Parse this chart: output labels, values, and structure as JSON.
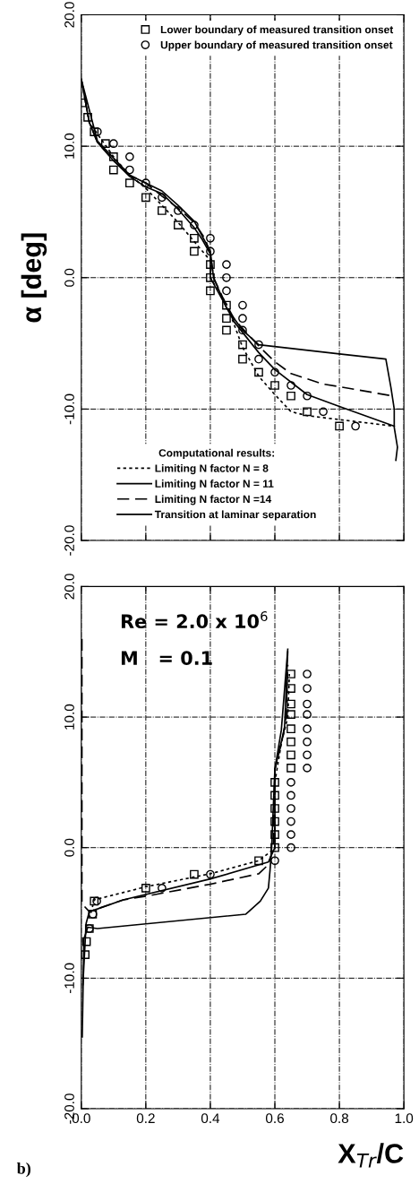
{
  "chart_data": [
    {
      "type": "line",
      "ylabel": "α [deg]",
      "legend": "top right",
      "legend_title": "Computational results:",
      "grid": true,
      "tick_labels": "y",
      "xlim": [
        0,
        1
      ],
      "xticks": [
        0,
        0.2,
        0.4,
        0.6,
        0.8,
        1
      ],
      "ylim": [
        -20,
        20
      ],
      "yticks": [
        {
          "value": -20,
          "label": "-20.0"
        },
        {
          "value": -10,
          "label": "-10.0"
        },
        {
          "value": 0,
          "label": "0.0"
        },
        {
          "value": 10,
          "label": "10.0"
        },
        {
          "value": 20,
          "label": "20.0"
        }
      ],
      "series": [
        {
          "type": "scatter",
          "name": "Lower boundary of measured transition onset",
          "color": "#000000",
          "marker": "square",
          "x": [
            0.003,
            0.02,
            0.04,
            0.075,
            0.1,
            0.1,
            0.15,
            0.2,
            0.25,
            0.3,
            0.35,
            0.35,
            0.4,
            0.4,
            0.4,
            0.45,
            0.45,
            0.45,
            0.5,
            0.5,
            0.55,
            0.6,
            0.65,
            0.7,
            0.8
          ],
          "values": [
            13.3,
            12.2,
            11.1,
            10.2,
            9.2,
            8.2,
            7.2,
            6.1,
            5.1,
            4.0,
            3.0,
            2.0,
            1.0,
            0,
            -1.0,
            -2.1,
            -3.1,
            -4.0,
            -5.1,
            -6.2,
            -7.2,
            -8.2,
            -9.0,
            -10.2,
            -11.3
          ]
        },
        {
          "type": "scatter",
          "name": "Upper boundary of measured transition onset",
          "color": "#000000",
          "marker": "circle",
          "x": [
            0.05,
            0.1,
            0.15,
            0.15,
            0.2,
            0.25,
            0.3,
            0.35,
            0.4,
            0.4,
            0.45,
            0.45,
            0.45,
            0.5,
            0.5,
            0.5,
            0.55,
            0.55,
            0.6,
            0.65,
            0.7,
            0.75,
            0.85
          ],
          "values": [
            11.1,
            10.2,
            9.2,
            8.2,
            7.2,
            6.1,
            5.1,
            4.0,
            3.0,
            2.0,
            1.0,
            0,
            -1.0,
            -2.1,
            -3.1,
            -4.0,
            -5.1,
            -6.2,
            -7.2,
            -8.2,
            -9.0,
            -10.2,
            -11.3
          ]
        },
        {
          "name": "Limiting N factor N = 8",
          "color": "#000000",
          "line_style": "dotted",
          "x": [
            0,
            0.025,
            0.1,
            0.15,
            0.2,
            0.3,
            0.4,
            0.4,
            0.45,
            0.5,
            0.55,
            0.6,
            0.65,
            0.7,
            0.8,
            0.97
          ],
          "values": [
            15.1,
            11.8,
            9.2,
            7.8,
            6.8,
            4.2,
            1.3,
            0,
            -2.0,
            -5.3,
            -7.5,
            -8.9,
            -10.2,
            -10.5,
            -10.8,
            -11.3
          ]
        },
        {
          "name": "Limiting N factor N = 11",
          "color": "#000000",
          "line_style": "solid",
          "x": [
            0,
            0.025,
            0.05,
            0.1,
            0.15,
            0.2,
            0.25,
            0.3,
            0.35,
            0.375,
            0.4,
            0.4,
            0.44,
            0.475,
            0.55,
            0.6,
            0.7,
            0.8,
            0.97
          ],
          "values": [
            15.1,
            11.8,
            10.3,
            8.9,
            7.7,
            6.9,
            6.4,
            5.2,
            3.8,
            2.9,
            1.8,
            0,
            -1.8,
            -3.4,
            -5.7,
            -7.0,
            -8.9,
            -9.8,
            -11.3
          ]
        },
        {
          "name": "Limiting N factor N =14",
          "color": "#000000",
          "line_style": "dashed",
          "x": [
            0,
            0.025,
            0.05,
            0.1,
            0.15,
            0.2,
            0.25,
            0.3,
            0.35,
            0.385,
            0.4,
            0.41,
            0.44,
            0.475,
            0.55,
            0.6,
            0.65,
            0.75,
            0.8,
            0.965
          ],
          "values": [
            15.1,
            11.8,
            10.3,
            8.9,
            7.8,
            7.2,
            6.2,
            5.3,
            4.2,
            2.9,
            1.8,
            0,
            -1.6,
            -3.2,
            -5.2,
            -6.4,
            -7.3,
            -8.1,
            -8.3,
            -9.0
          ]
        },
        {
          "name": "Transition at laminar separation",
          "color": "#000000",
          "line_style": "solid",
          "x": [
            0,
            0.05,
            0.15,
            0.2,
            0.25,
            0.3,
            0.35,
            0.4,
            0.41,
            0.45,
            0.5,
            0.55,
            0.8,
            0.944,
            0.96,
            0.97,
            0.97,
            0.98,
            0.975
          ],
          "values": [
            15.1,
            10.4,
            7.8,
            7.2,
            6.6,
            5.5,
            4.3,
            2.0,
            0,
            -2.3,
            -4.0,
            -5.1,
            -5.8,
            -6.2,
            -8.4,
            -10.0,
            -11.4,
            -12.9,
            -13.9
          ]
        }
      ]
    },
    {
      "type": "line",
      "xlabel": "X$_{Tr}$/C",
      "grid": true,
      "annotations": [
        "Re = 2.0 x 10$^{6}$",
        "M   = 0.1",
        "b)"
      ],
      "xlim": [
        0,
        1
      ],
      "xticks": [
        {
          "value": 0,
          "label": "0.0"
        },
        {
          "value": 0.2,
          "label": "0.2"
        },
        {
          "value": 0.4,
          "label": "0.4"
        },
        {
          "value": 0.6,
          "label": "0.6"
        },
        {
          "value": 0.8,
          "label": "0.8"
        },
        {
          "value": 1,
          "label": "1.0"
        }
      ],
      "ylim": [
        -20,
        20
      ],
      "yticks": [
        {
          "value": -20,
          "label": "-20.0"
        },
        {
          "value": -10,
          "label": "-10.0"
        },
        {
          "value": 0,
          "label": "0.0"
        },
        {
          "value": 10,
          "label": "10.0"
        },
        {
          "value": 20,
          "label": "20.0"
        }
      ],
      "series": [
        {
          "type": "scatter",
          "color": "#000000",
          "marker": "square",
          "x": [
            0.012,
            0.016,
            0.025,
            0.035,
            0.04,
            0.2,
            0.35,
            0.55,
            0.6,
            0.6,
            0.6,
            0.6,
            0.6,
            0.6,
            0.65,
            0.65,
            0.65,
            0.65,
            0.65,
            0.65,
            0.65,
            0.65
          ],
          "values": [
            -8.2,
            -7.2,
            -6.2,
            -5.1,
            -4.1,
            -3.1,
            -2.05,
            -1.0,
            0,
            1.0,
            2.0,
            3.0,
            4.0,
            5.0,
            6.1,
            7.1,
            8.1,
            9.1,
            10.2,
            11.0,
            12.2,
            13.3
          ]
        },
        {
          "type": "scatter",
          "color": "#000000",
          "marker": "circle",
          "x": [
            0.025,
            0.036,
            0.048,
            0.25,
            0.4,
            0.6,
            0.65,
            0.65,
            0.65,
            0.65,
            0.65,
            0.65,
            0.7,
            0.7,
            0.7,
            0.7,
            0.7,
            0.7,
            0.7,
            0.7
          ],
          "values": [
            -6.2,
            -5.1,
            -4.1,
            -3.1,
            -2.05,
            -1.0,
            0,
            1.0,
            2.0,
            3.0,
            4.0,
            5.0,
            6.1,
            7.1,
            8.1,
            9.1,
            10.2,
            11.0,
            12.2,
            13.3
          ]
        },
        {
          "color": "#000000",
          "line_style": "dotted",
          "x": [
            0.03,
            0.04,
            0.2,
            0.4,
            0.55,
            0.6,
            0.6,
            0.62,
            0.64,
            0.645
          ],
          "values": [
            -5.0,
            -4.0,
            -3.0,
            -2.0,
            -1.0,
            -0.05,
            5.0,
            8.0,
            10.0,
            13.3
          ]
        },
        {
          "color": "#000000",
          "line_style": "solid",
          "x": [
            0.005,
            0.015,
            0.025,
            0.05,
            0.13,
            0.4,
            0.58,
            0.6,
            0.6,
            0.62,
            0.63,
            0.64
          ],
          "values": [
            -10.5,
            -5.8,
            -4.9,
            -4.7,
            -4.0,
            -2.4,
            -1.1,
            0,
            6.0,
            8.1,
            9.2,
            15.0
          ]
        },
        {
          "color": "#000000",
          "line_style": "dashed",
          "x": [
            0.002,
            0.002,
            0.025,
            0.13,
            0.205,
            0.4,
            0.55,
            0.58,
            0.595,
            0.6,
            0.625,
            0.635,
            0.64
          ],
          "values": [
            16.0,
            -4.3,
            -4.9,
            -4.0,
            -3.7,
            -2.8,
            -2.0,
            -1.3,
            0,
            6.0,
            8.5,
            10.0,
            14.0
          ]
        },
        {
          "color": "#000000",
          "line_style": "solid",
          "x": [
            0.003,
            0.008,
            0.02,
            0.05,
            0.51,
            0.555,
            0.58,
            0.585,
            0.59,
            0.6,
            0.62,
            0.64
          ],
          "values": [
            -14.5,
            -7.0,
            -6.1,
            -6.2,
            -5.1,
            -4.1,
            -3.1,
            -1.75,
            0,
            6.0,
            9.0,
            15.2
          ]
        }
      ]
    }
  ]
}
